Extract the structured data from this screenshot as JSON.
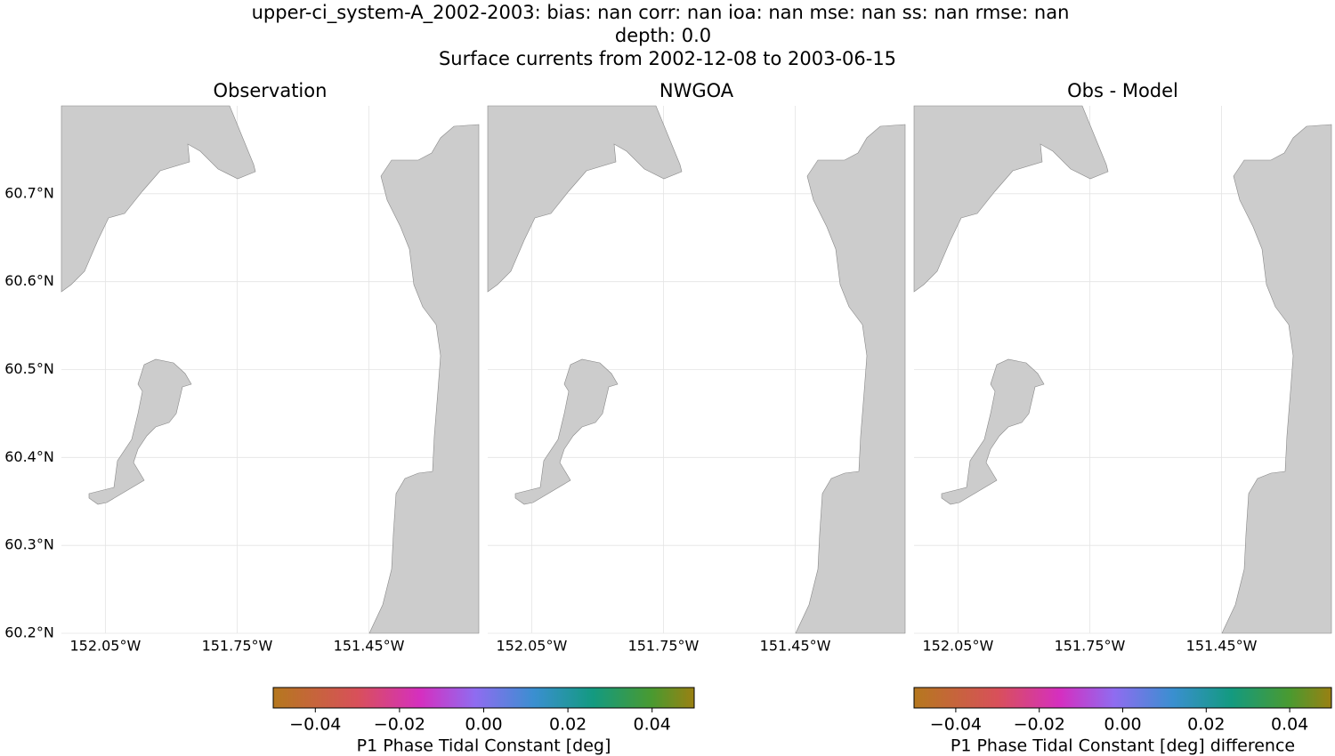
{
  "title": [
    "upper-ci_system-A_2002-2003: bias: nan  corr: nan  ioa: nan  mse: nan  ss: nan  rmse: nan",
    "depth: 0.0",
    "Surface currents from 2002-12-08 to 2003-06-15"
  ],
  "panels": [
    {
      "title": "Observation"
    },
    {
      "title": "NWGOA"
    },
    {
      "title": "Obs - Model"
    }
  ],
  "lat_lim": [
    60.2,
    60.8
  ],
  "lat_ticks": [
    {
      "value": 60.2,
      "label": "60.2°N"
    },
    {
      "value": 60.3,
      "label": "60.3°N"
    },
    {
      "value": 60.4,
      "label": "60.4°N"
    },
    {
      "value": 60.5,
      "label": "60.5°N"
    },
    {
      "value": 60.6,
      "label": "60.6°N"
    },
    {
      "value": 60.7,
      "label": "60.7°N"
    }
  ],
  "lon_lim": [
    -152.15,
    -151.2
  ],
  "lon_ticks": [
    {
      "value": -152.05,
      "label": "152.05°W"
    },
    {
      "value": -151.75,
      "label": "151.75°W"
    },
    {
      "value": -151.45,
      "label": "151.45°W"
    }
  ],
  "colorbars": [
    {
      "label": "P1 Phase Tidal Constant [deg]",
      "lim": [
        -0.05,
        0.05
      ],
      "ticks": [
        {
          "value": -0.04,
          "label": "−0.04"
        },
        {
          "value": -0.02,
          "label": "−0.02"
        },
        {
          "value": 0,
          "label": "0.00"
        },
        {
          "value": 0.02,
          "label": "0.02"
        },
        {
          "value": 0.04,
          "label": "0.04"
        }
      ]
    },
    {
      "label": "P1 Phase Tidal Constant [deg] difference",
      "lim": [
        -0.05,
        0.05
      ],
      "ticks": [
        {
          "value": -0.04,
          "label": "−0.04"
        },
        {
          "value": -0.02,
          "label": "−0.02"
        },
        {
          "value": 0,
          "label": "0.00"
        },
        {
          "value": 0.02,
          "label": "0.02"
        },
        {
          "value": 0.04,
          "label": "0.04"
        }
      ]
    }
  ]
}
